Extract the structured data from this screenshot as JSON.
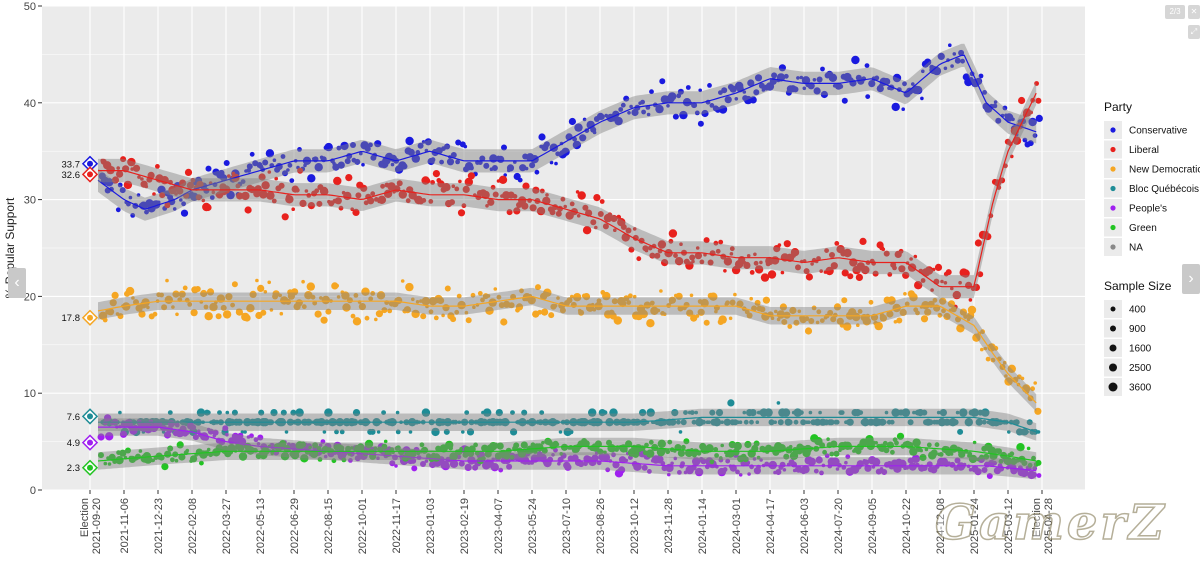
{
  "chart_data": {
    "type": "scatter",
    "ylabel": "% Popular Support",
    "ylim": [
      0,
      50
    ],
    "y_ticks": [
      "0",
      "10",
      "20",
      "30",
      "40",
      "50"
    ],
    "x_start": "2021-09-20",
    "x_end": "2025-04-28",
    "x_ticks": [
      "Election 2021-09-20",
      "2021-11-06",
      "2021-12-23",
      "2022-02-08",
      "2022-03-27",
      "2022-05-13",
      "2022-06-29",
      "2022-08-15",
      "2022-10-01",
      "2022-11-17",
      "2023-01-03",
      "2023-02-19",
      "2023-04-07",
      "2023-05-24",
      "2023-07-10",
      "2023-08-26",
      "2023-10-12",
      "2023-11-28",
      "2024-01-14",
      "2024-03-01",
      "2024-04-17",
      "2024-06-03",
      "2024-07-20",
      "2024-09-05",
      "2024-10-22",
      "2024-12-08",
      "2025-01-24",
      "2025-03-12",
      "Election 2025-04-28"
    ],
    "election_results": [
      {
        "party": "Conservative",
        "date": "2021-09-20",
        "value": 33.7,
        "label": "33.7"
      },
      {
        "party": "Liberal",
        "date": "2021-09-20",
        "value": 32.6,
        "label": "32.6"
      },
      {
        "party": "New Democratic",
        "date": "2021-09-20",
        "value": 17.8,
        "label": "17.8"
      },
      {
        "party": "Bloc Québécois",
        "date": "2021-09-20",
        "value": 7.6,
        "label": "7.6"
      },
      {
        "party": "People's",
        "date": "2021-09-20",
        "value": 4.9,
        "label": "4.9"
      },
      {
        "party": "Green",
        "date": "2021-09-20",
        "value": 2.3,
        "label": "2.3"
      }
    ],
    "series": [
      {
        "name": "Conservative",
        "color": "#1a1adf",
        "trend": [
          [
            "2021-10-01",
            32
          ],
          [
            "2021-11-06",
            30
          ],
          [
            "2021-12-05",
            29
          ],
          [
            "2022-01-15",
            30
          ],
          [
            "2022-02-08",
            31
          ],
          [
            "2022-03-27",
            32
          ],
          [
            "2022-05-13",
            33
          ],
          [
            "2022-06-29",
            34
          ],
          [
            "2022-08-15",
            34
          ],
          [
            "2022-10-01",
            35
          ],
          [
            "2022-11-17",
            34
          ],
          [
            "2023-01-03",
            35
          ],
          [
            "2023-02-19",
            34
          ],
          [
            "2023-04-07",
            34
          ],
          [
            "2023-05-24",
            34
          ],
          [
            "2023-07-10",
            36
          ],
          [
            "2023-08-26",
            38
          ],
          [
            "2023-10-12",
            39.5
          ],
          [
            "2023-11-28",
            40
          ],
          [
            "2024-01-14",
            40
          ],
          [
            "2024-03-01",
            41
          ],
          [
            "2024-04-17",
            42.5
          ],
          [
            "2024-06-03",
            42
          ],
          [
            "2024-07-20",
            42
          ],
          [
            "2024-09-05",
            42.5
          ],
          [
            "2024-10-22",
            41
          ],
          [
            "2024-12-08",
            44
          ],
          [
            "2025-01-10",
            45
          ],
          [
            "2025-02-10",
            40
          ],
          [
            "2025-03-12",
            38
          ],
          [
            "2025-04-20",
            37
          ]
        ]
      },
      {
        "name": "Liberal",
        "color": "#e8211d",
        "trend": [
          [
            "2021-10-01",
            33
          ],
          [
            "2021-11-06",
            33
          ],
          [
            "2021-12-23",
            32
          ],
          [
            "2022-02-08",
            31
          ],
          [
            "2022-03-27",
            31
          ],
          [
            "2022-05-13",
            31
          ],
          [
            "2022-06-29",
            30.5
          ],
          [
            "2022-08-15",
            30.5
          ],
          [
            "2022-10-01",
            30
          ],
          [
            "2022-11-17",
            31
          ],
          [
            "2023-01-03",
            30.5
          ],
          [
            "2023-02-19",
            30.5
          ],
          [
            "2023-04-07",
            30
          ],
          [
            "2023-05-24",
            30
          ],
          [
            "2023-07-10",
            29
          ],
          [
            "2023-08-26",
            28
          ],
          [
            "2023-10-12",
            26
          ],
          [
            "2023-11-28",
            24.5
          ],
          [
            "2024-01-14",
            24.5
          ],
          [
            "2024-03-01",
            24
          ],
          [
            "2024-04-17",
            24
          ],
          [
            "2024-06-03",
            23.5
          ],
          [
            "2024-07-20",
            24
          ],
          [
            "2024-09-05",
            23.5
          ],
          [
            "2024-10-22",
            23.5
          ],
          [
            "2024-12-08",
            21
          ],
          [
            "2025-01-24",
            21
          ],
          [
            "2025-02-20",
            30
          ],
          [
            "2025-03-12",
            35
          ],
          [
            "2025-04-20",
            41
          ]
        ]
      },
      {
        "name": "New Democratic",
        "color": "#f5a623",
        "trend": [
          [
            "2021-10-01",
            18.5
          ],
          [
            "2021-11-06",
            19
          ],
          [
            "2021-12-23",
            19.5
          ],
          [
            "2022-02-08",
            19.5
          ],
          [
            "2022-03-27",
            19.5
          ],
          [
            "2022-05-13",
            19.5
          ],
          [
            "2022-06-29",
            19.5
          ],
          [
            "2022-08-15",
            19.5
          ],
          [
            "2022-10-01",
            19.5
          ],
          [
            "2022-11-17",
            19.5
          ],
          [
            "2023-01-03",
            19
          ],
          [
            "2023-02-19",
            19
          ],
          [
            "2023-04-07",
            19.5
          ],
          [
            "2023-05-24",
            20
          ],
          [
            "2023-07-10",
            19
          ],
          [
            "2023-08-26",
            19
          ],
          [
            "2023-10-12",
            19
          ],
          [
            "2023-11-28",
            19
          ],
          [
            "2024-01-14",
            19
          ],
          [
            "2024-03-01",
            19
          ],
          [
            "2024-04-17",
            18
          ],
          [
            "2024-06-03",
            18
          ],
          [
            "2024-07-20",
            18
          ],
          [
            "2024-09-05",
            18
          ],
          [
            "2024-10-22",
            19
          ],
          [
            "2024-12-08",
            19
          ],
          [
            "2025-01-24",
            17
          ],
          [
            "2025-02-20",
            14
          ],
          [
            "2025-03-12",
            12
          ],
          [
            "2025-04-20",
            9
          ]
        ]
      },
      {
        "name": "Bloc Québécois",
        "color": "#1e8c96",
        "trend": [
          [
            "2021-10-01",
            7
          ],
          [
            "2021-12-23",
            7
          ],
          [
            "2022-03-27",
            7
          ],
          [
            "2022-06-29",
            7
          ],
          [
            "2022-10-01",
            7
          ],
          [
            "2023-01-03",
            7
          ],
          [
            "2023-04-07",
            7
          ],
          [
            "2023-07-10",
            7
          ],
          [
            "2023-10-12",
            7
          ],
          [
            "2024-01-14",
            7.5
          ],
          [
            "2024-04-17",
            7.5
          ],
          [
            "2024-07-20",
            7.5
          ],
          [
            "2024-10-22",
            7.5
          ],
          [
            "2025-01-24",
            7.5
          ],
          [
            "2025-03-12",
            7
          ],
          [
            "2025-04-20",
            6
          ]
        ]
      },
      {
        "name": "People's",
        "color": "#a020f0",
        "trend": [
          [
            "2021-10-01",
            6.5
          ],
          [
            "2021-11-06",
            6.5
          ],
          [
            "2021-12-23",
            6.5
          ],
          [
            "2022-02-08",
            6
          ],
          [
            "2022-03-27",
            5
          ],
          [
            "2022-05-13",
            4.5
          ],
          [
            "2022-08-15",
            4
          ],
          [
            "2022-11-17",
            3.5
          ],
          [
            "2023-02-19",
            3
          ],
          [
            "2023-05-24",
            3
          ],
          [
            "2023-08-26",
            3
          ],
          [
            "2023-11-28",
            2.5
          ],
          [
            "2024-03-01",
            2.5
          ],
          [
            "2024-06-03",
            2.5
          ],
          [
            "2024-09-05",
            2.5
          ],
          [
            "2024-12-08",
            2.5
          ],
          [
            "2025-02-10",
            2.5
          ],
          [
            "2025-04-20",
            2
          ]
        ]
      },
      {
        "name": "Green",
        "color": "#22c422",
        "trend": [
          [
            "2021-10-01",
            3
          ],
          [
            "2021-12-23",
            3.5
          ],
          [
            "2022-03-27",
            4
          ],
          [
            "2022-06-29",
            4
          ],
          [
            "2022-10-01",
            4
          ],
          [
            "2023-01-03",
            4
          ],
          [
            "2023-04-07",
            4
          ],
          [
            "2023-07-10",
            4.5
          ],
          [
            "2023-10-12",
            4.5
          ],
          [
            "2024-01-14",
            4
          ],
          [
            "2024-04-17",
            4
          ],
          [
            "2024-07-20",
            4.5
          ],
          [
            "2024-10-22",
            4.5
          ],
          [
            "2025-01-24",
            4
          ],
          [
            "2025-03-12",
            3.5
          ],
          [
            "2025-04-20",
            3
          ]
        ]
      }
    ],
    "legend": {
      "position": "right",
      "party_title": "Party",
      "parties": [
        {
          "name": "Conservative",
          "color": "#1a1adf"
        },
        {
          "name": "Liberal",
          "color": "#e8211d"
        },
        {
          "name": "New Democratic",
          "color": "#f5a623"
        },
        {
          "name": "Bloc Québécois",
          "color": "#1e8c96"
        },
        {
          "name": "People's",
          "color": "#a020f0"
        },
        {
          "name": "Green",
          "color": "#22c422"
        },
        {
          "name": "NA",
          "color": "#888888"
        }
      ],
      "size_title": "Sample Size",
      "sizes": [
        {
          "label": "400",
          "value": 400
        },
        {
          "label": "900",
          "value": 900
        },
        {
          "label": "1600",
          "value": 1600
        },
        {
          "label": "2500",
          "value": 2500
        },
        {
          "label": "3600",
          "value": 3600
        }
      ]
    },
    "grid": true
  },
  "ui": {
    "page_indicator": "2/3",
    "prev_label": "‹",
    "next_label": "›",
    "close_label": "✕",
    "expand_label": "⤢",
    "watermark": "GamerZ"
  }
}
